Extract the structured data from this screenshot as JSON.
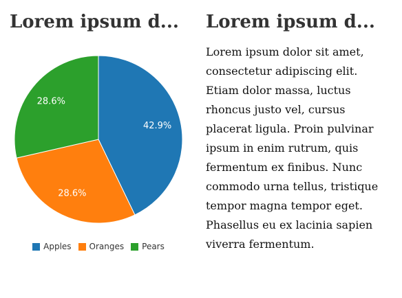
{
  "left_panel": {
    "heading": "Lorem ipsum d..."
  },
  "right_panel": {
    "heading": "Lorem ipsum d...",
    "paragraph": "Lorem ipsum dolor sit amet, consectetur adipiscing elit. Etiam dolor massa, luctus rhoncus justo vel, cursus placerat ligula. Proin pulvinar ipsum in enim rutrum, quis fermentum ex finibus. Nunc commodo urna tellus, tristique tempor magna tempor eget. Phasellus eu ex lacinia sapien viverra fermentum."
  },
  "chart_data": {
    "type": "pie",
    "legend_position": "bottom",
    "slices": [
      {
        "name": "Apples",
        "value": 42.9,
        "label": "42.9%",
        "color": "#1f77b4"
      },
      {
        "name": "Oranges",
        "value": 28.6,
        "label": "28.6%",
        "color": "#ff7f0e"
      },
      {
        "name": "Pears",
        "value": 28.6,
        "label": "28.6%",
        "color": "#2ca02c"
      }
    ]
  }
}
